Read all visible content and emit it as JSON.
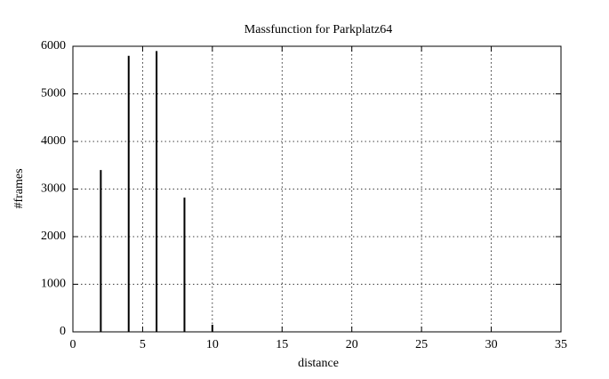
{
  "chart_data": {
    "type": "impulse",
    "title": "Massfunction for Parkplatz64",
    "xlabel": "distance",
    "ylabel": "#frames",
    "x": [
      2,
      4,
      6,
      8,
      10
    ],
    "values": [
      3400,
      5800,
      5900,
      2820,
      150
    ],
    "color": "#000000",
    "xlim": [
      0,
      35
    ],
    "xticks": [
      0,
      5,
      10,
      15,
      20,
      25,
      30,
      35
    ],
    "ylim": [
      0,
      6000
    ],
    "yticks": [
      0,
      1000,
      2000,
      3000,
      4000,
      5000,
      6000
    ],
    "grid": true
  }
}
